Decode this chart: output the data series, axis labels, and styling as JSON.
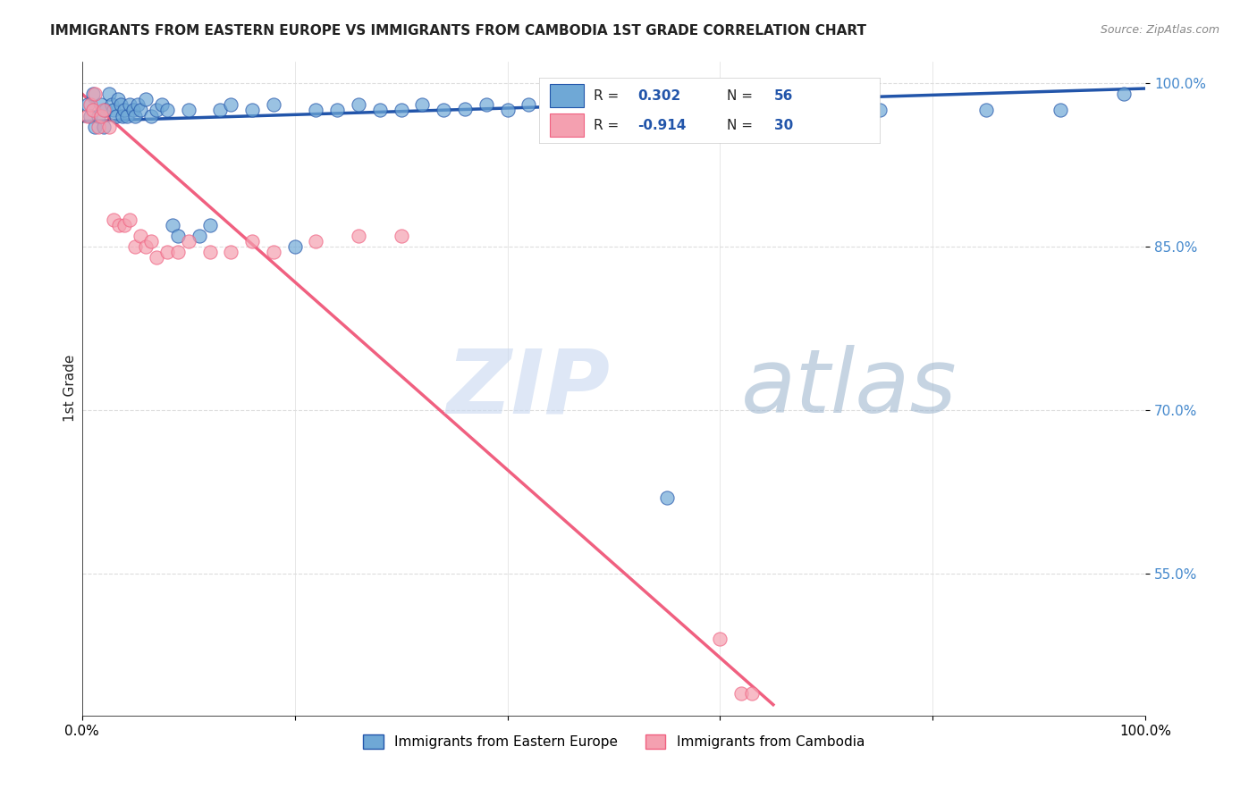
{
  "title": "IMMIGRANTS FROM EASTERN EUROPE VS IMMIGRANTS FROM CAMBODIA 1ST GRADE CORRELATION CHART",
  "source": "Source: ZipAtlas.com",
  "ylabel": "1st Grade",
  "xlim": [
    0.0,
    1.0
  ],
  "ylim": [
    0.42,
    1.02
  ],
  "yticks": [
    0.55,
    0.7,
    0.85,
    1.0
  ],
  "ytick_labels": [
    "55.0%",
    "70.0%",
    "85.0%",
    "100.0%"
  ],
  "xticks": [
    0.0,
    0.2,
    0.4,
    0.6,
    0.8,
    1.0
  ],
  "xtick_labels": [
    "0.0%",
    "",
    "",
    "",
    "",
    "100.0%"
  ],
  "blue_R": 0.302,
  "blue_N": 56,
  "pink_R": -0.914,
  "pink_N": 30,
  "blue_color": "#6fa8d6",
  "pink_color": "#f4a0b0",
  "blue_line_color": "#2255aa",
  "pink_line_color": "#f06080",
  "grid_color": "#dddddd",
  "title_color": "#222222",
  "legend_r_color": "#2255aa",
  "watermark_zip_color": "#c8d8f0",
  "watermark_atlas_color": "#a0b8d0",
  "blue_scatter_x": [
    0.005,
    0.008,
    0.01,
    0.012,
    0.015,
    0.018,
    0.02,
    0.022,
    0.025,
    0.028,
    0.03,
    0.032,
    0.034,
    0.036,
    0.038,
    0.04,
    0.042,
    0.045,
    0.048,
    0.05,
    0.052,
    0.055,
    0.06,
    0.065,
    0.07,
    0.075,
    0.08,
    0.085,
    0.09,
    0.1,
    0.11,
    0.12,
    0.13,
    0.14,
    0.16,
    0.18,
    0.2,
    0.22,
    0.24,
    0.26,
    0.28,
    0.3,
    0.32,
    0.34,
    0.36,
    0.38,
    0.4,
    0.42,
    0.5,
    0.55,
    0.6,
    0.65,
    0.75,
    0.85,
    0.92,
    0.98
  ],
  "blue_scatter_y": [
    0.98,
    0.97,
    0.99,
    0.96,
    0.97,
    0.98,
    0.96,
    0.975,
    0.99,
    0.98,
    0.975,
    0.97,
    0.985,
    0.98,
    0.97,
    0.975,
    0.97,
    0.98,
    0.975,
    0.97,
    0.98,
    0.975,
    0.985,
    0.97,
    0.975,
    0.98,
    0.975,
    0.87,
    0.86,
    0.975,
    0.86,
    0.87,
    0.975,
    0.98,
    0.975,
    0.98,
    0.85,
    0.975,
    0.975,
    0.98,
    0.975,
    0.975,
    0.98,
    0.975,
    0.976,
    0.98,
    0.975,
    0.98,
    0.975,
    0.62,
    0.975,
    0.975,
    0.975,
    0.975,
    0.975,
    0.99
  ],
  "pink_scatter_x": [
    0.005,
    0.008,
    0.01,
    0.012,
    0.015,
    0.018,
    0.02,
    0.025,
    0.03,
    0.035,
    0.04,
    0.045,
    0.05,
    0.055,
    0.06,
    0.065,
    0.07,
    0.08,
    0.09,
    0.1,
    0.12,
    0.14,
    0.16,
    0.18,
    0.22,
    0.26,
    0.3,
    0.6,
    0.62,
    0.63
  ],
  "pink_scatter_y": [
    0.97,
    0.98,
    0.975,
    0.99,
    0.96,
    0.97,
    0.975,
    0.96,
    0.875,
    0.87,
    0.87,
    0.875,
    0.85,
    0.86,
    0.85,
    0.855,
    0.84,
    0.845,
    0.845,
    0.855,
    0.845,
    0.845,
    0.855,
    0.845,
    0.855,
    0.86,
    0.86,
    0.49,
    0.44,
    0.44
  ],
  "blue_trend_x": [
    0.0,
    1.0
  ],
  "blue_trend_y": [
    0.965,
    0.995
  ],
  "pink_trend_x": [
    0.0,
    0.65
  ],
  "pink_trend_y": [
    0.99,
    0.43
  ]
}
